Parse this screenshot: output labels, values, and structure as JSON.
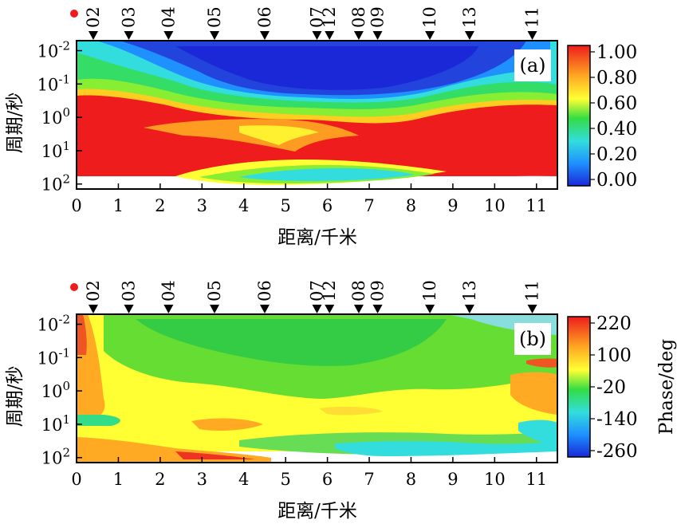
{
  "chart_data": [
    {
      "type": "heatmap",
      "panel_label": "(a)",
      "xlabel": "距离/千米",
      "ylabel": "周期/秒",
      "xlim": [
        0,
        11.5
      ],
      "x_ticks": [
        "0",
        "1",
        "2",
        "3",
        "4",
        "5",
        "6",
        "7",
        "8",
        "9",
        "10",
        "11"
      ],
      "y_tick_labels": [
        {
          "base": "10",
          "exp": "-2"
        },
        {
          "base": "10",
          "exp": "-1"
        },
        {
          "base": "10",
          "exp": "0"
        },
        {
          "base": "10",
          "exp": "1"
        },
        {
          "base": "10",
          "exp": "2"
        }
      ],
      "ylim_log": [
        -2.3,
        2.15
      ],
      "stations": [
        {
          "name": "02",
          "x": 0.4
        },
        {
          "name": "03",
          "x": 1.25
        },
        {
          "name": "04",
          "x": 2.2
        },
        {
          "name": "05",
          "x": 3.3
        },
        {
          "name": "06",
          "x": 4.5
        },
        {
          "name": "07",
          "x": 5.75
        },
        {
          "name": "12",
          "x": 6.05
        },
        {
          "name": "08",
          "x": 6.75
        },
        {
          "name": "09",
          "x": 7.2
        },
        {
          "name": "10",
          "x": 8.45
        },
        {
          "name": "13",
          "x": 9.4
        },
        {
          "name": "11",
          "x": 10.9
        }
      ],
      "colorbar": {
        "min": 0.0,
        "max": 1.0,
        "labels": [
          "1.00",
          "0.80",
          "0.60",
          "0.40",
          "0.20",
          "0.00"
        ],
        "title": ""
      },
      "colors": {
        "low": "#1a28d8",
        "mid": "#ffff33",
        "high": "#ee1c1c"
      }
    },
    {
      "type": "heatmap",
      "panel_label": "(b)",
      "xlabel": "距离/千米",
      "ylabel": "周期/秒",
      "xlim": [
        0,
        11.5
      ],
      "x_ticks": [
        "0",
        "1",
        "2",
        "3",
        "4",
        "5",
        "6",
        "7",
        "8",
        "9",
        "10",
        "11"
      ],
      "y_tick_labels": [
        {
          "base": "10",
          "exp": "-2"
        },
        {
          "base": "10",
          "exp": "-1"
        },
        {
          "base": "10",
          "exp": "0"
        },
        {
          "base": "10",
          "exp": "1"
        },
        {
          "base": "10",
          "exp": "2"
        }
      ],
      "ylim_log": [
        -2.3,
        2.15
      ],
      "stations": [
        {
          "name": "02",
          "x": 0.4
        },
        {
          "name": "03",
          "x": 1.25
        },
        {
          "name": "04",
          "x": 2.2
        },
        {
          "name": "05",
          "x": 3.3
        },
        {
          "name": "06",
          "x": 4.5
        },
        {
          "name": "07",
          "x": 5.75
        },
        {
          "name": "12",
          "x": 6.05
        },
        {
          "name": "08",
          "x": 6.75
        },
        {
          "name": "09",
          "x": 7.2
        },
        {
          "name": "10",
          "x": 8.45
        },
        {
          "name": "13",
          "x": 9.4
        },
        {
          "name": "11",
          "x": 10.9
        }
      ],
      "colorbar": {
        "min": -260,
        "max": 220,
        "labels": [
          "220",
          "100",
          "-20",
          "-140",
          "-260"
        ],
        "title": "Phase/deg"
      },
      "colors": {
        "low": "#1a28d8",
        "mid": "#ffff33",
        "high": "#ee1c1c"
      }
    }
  ]
}
